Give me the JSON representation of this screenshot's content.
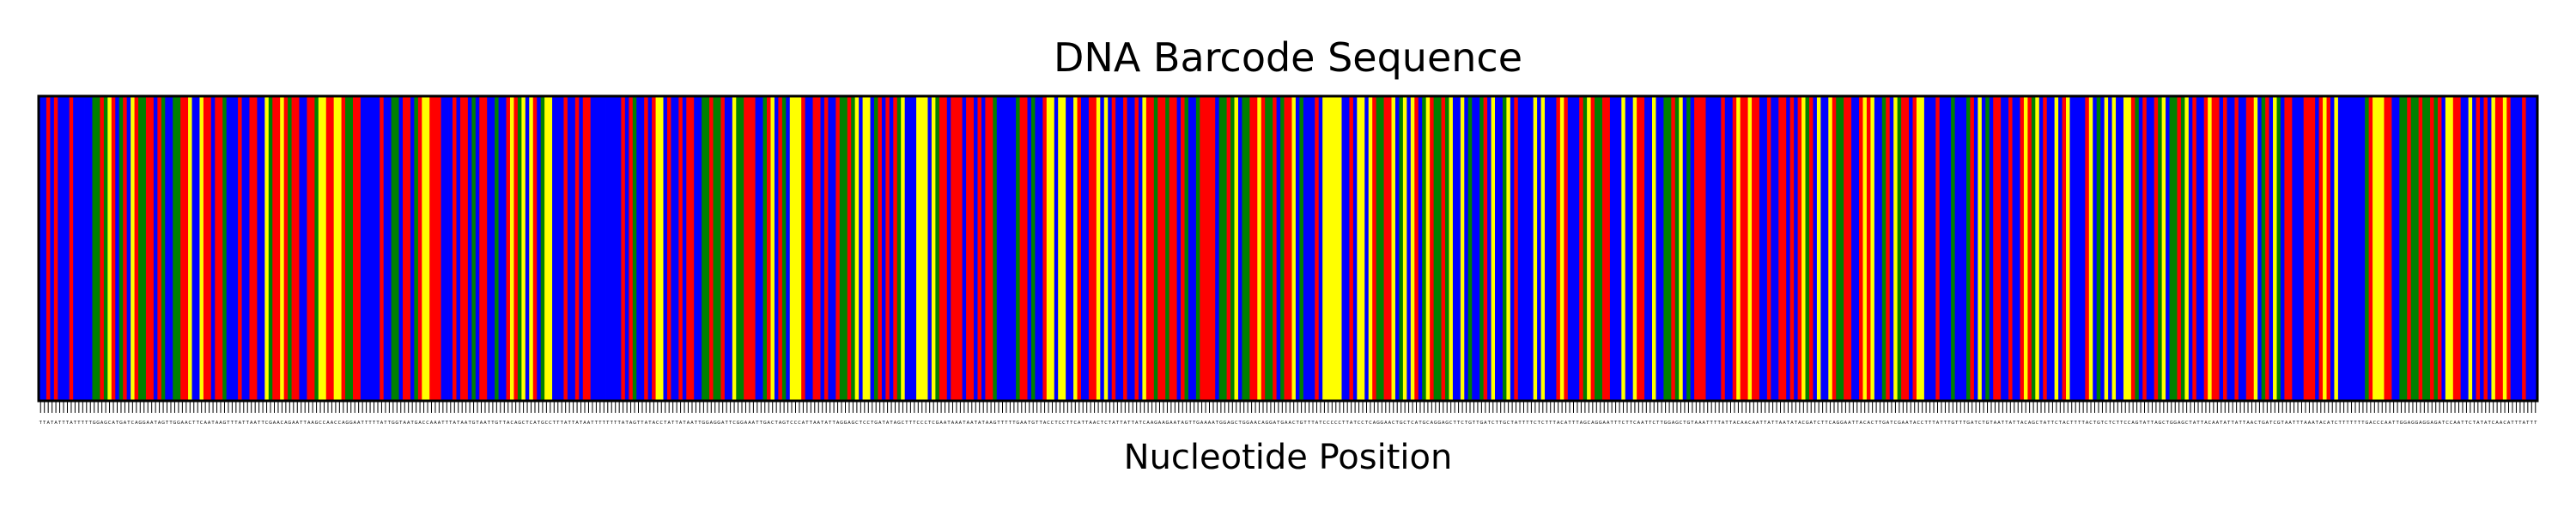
{
  "chart_data": {
    "type": "heatmap",
    "title": "DNA Barcode Sequence",
    "xlabel": "Nucleotide Position",
    "ylabel": "",
    "sequence": "TTATATTTATTTTTGGAGCATGATCAGGAATAGTTGGAACTTCAATAAGTTTATTAATTCGAACAGAATTAAGCCAACCAGGAATTTTTATTGGTAATGACCAAATTTATAATGTAATTGTTACAGCTCATGCCTTTATTATAATTTTTTTTATAGTTATACCTATTATAATTGGAGGATTCGGAAATTGACTAGTCCCATTAATATTAGGAGCTCCTGATATAGCTTTCCCTCGAATAAATAATATAAGTTTTTGAATGTTACCTCCTTCATTAACTCTATTATTATCAAGAAGAATAGTTGAAAATGGAGCTGGAACAGGATGAACTGTTTATCCCCCTTATCCTCAGGAACTGCTCATGCAGGAGCTTCTGTTGATCTTGCTATTTTCTCTTTACATTTAGCAGGAATTTCTTCAATTCTTGGAGCTGTAAATTTTATTACAACAATTATTAATATACGATCTTCAGGAATTACACTTGATCGAATACCTTTATTTGTTTGATCTGTAATTATTACAGCTATTCTACTTTTACTGTCTCTTCCAGTATTAGCTGGAGCTATTACAATATTATTAACTGATCGTAATTTAAATACATCTTTTTTTGACCCAATTGGAGGAGGAGATCCAATTCTATATCAACATTTATTT",
    "bases": [
      "A",
      "C",
      "G",
      "T"
    ],
    "legend": "none",
    "grid": false,
    "colors": {
      "A": "#ff0000",
      "C": "#ffff00",
      "G": "#008000",
      "T": "#0000ff",
      "background": "#ffffff",
      "frame": "#000000",
      "text": "#000000"
    }
  }
}
